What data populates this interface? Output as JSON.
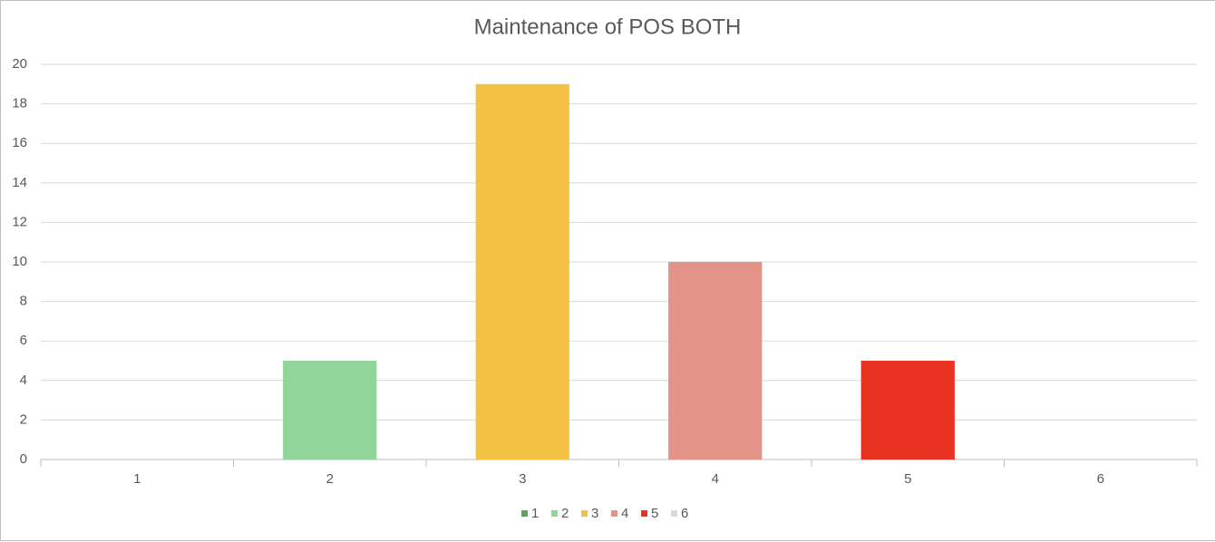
{
  "chart_data": {
    "type": "bar",
    "title": "Maintenance of POS BOTH",
    "categories": [
      "1",
      "2",
      "3",
      "4",
      "5",
      "6"
    ],
    "values": [
      0,
      5,
      19,
      10,
      5,
      0
    ],
    "colors": [
      "#5aa55a",
      "#92d59a",
      "#f4c242",
      "#e49389",
      "#e83323",
      "#d9d9d9"
    ],
    "ylim": [
      0,
      20
    ],
    "yticks": [
      0,
      2,
      4,
      6,
      8,
      10,
      12,
      14,
      16,
      18,
      20
    ],
    "grid": true,
    "legend": "bottom"
  }
}
